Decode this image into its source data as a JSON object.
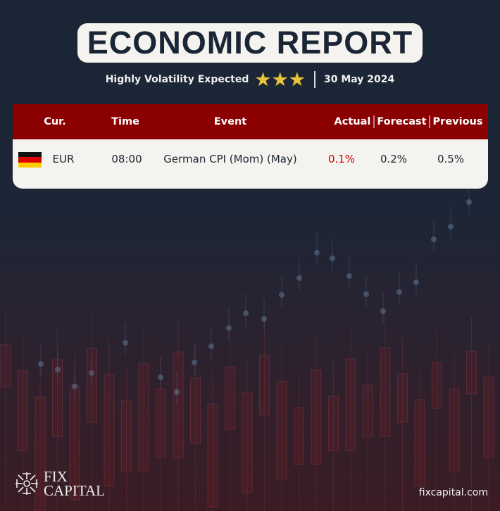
{
  "header": {
    "title": "ECONOMIC REPORT",
    "subtitle": "Highly Volatility Expected",
    "stars": 3,
    "date": "30 May 2024",
    "star_color": "#e8c340"
  },
  "table": {
    "header_color": "#8b0000",
    "columns": {
      "currency": "Cur.",
      "time": "Time",
      "event": "Event",
      "actual": "Actual",
      "forecast": "Forecast",
      "previous": "Previous"
    },
    "rows": [
      {
        "flag": "germany-flag",
        "currency": "EUR",
        "time": "08:00",
        "event": "German CPI (Mom) (May)",
        "actual": "0.1%",
        "forecast": "0.2%",
        "previous": "0.5%",
        "actual_color": "#cc0000"
      }
    ]
  },
  "footer": {
    "brand_line1": "FIX",
    "brand_line2": "CAPITAL",
    "website": "fixcapital.com"
  }
}
